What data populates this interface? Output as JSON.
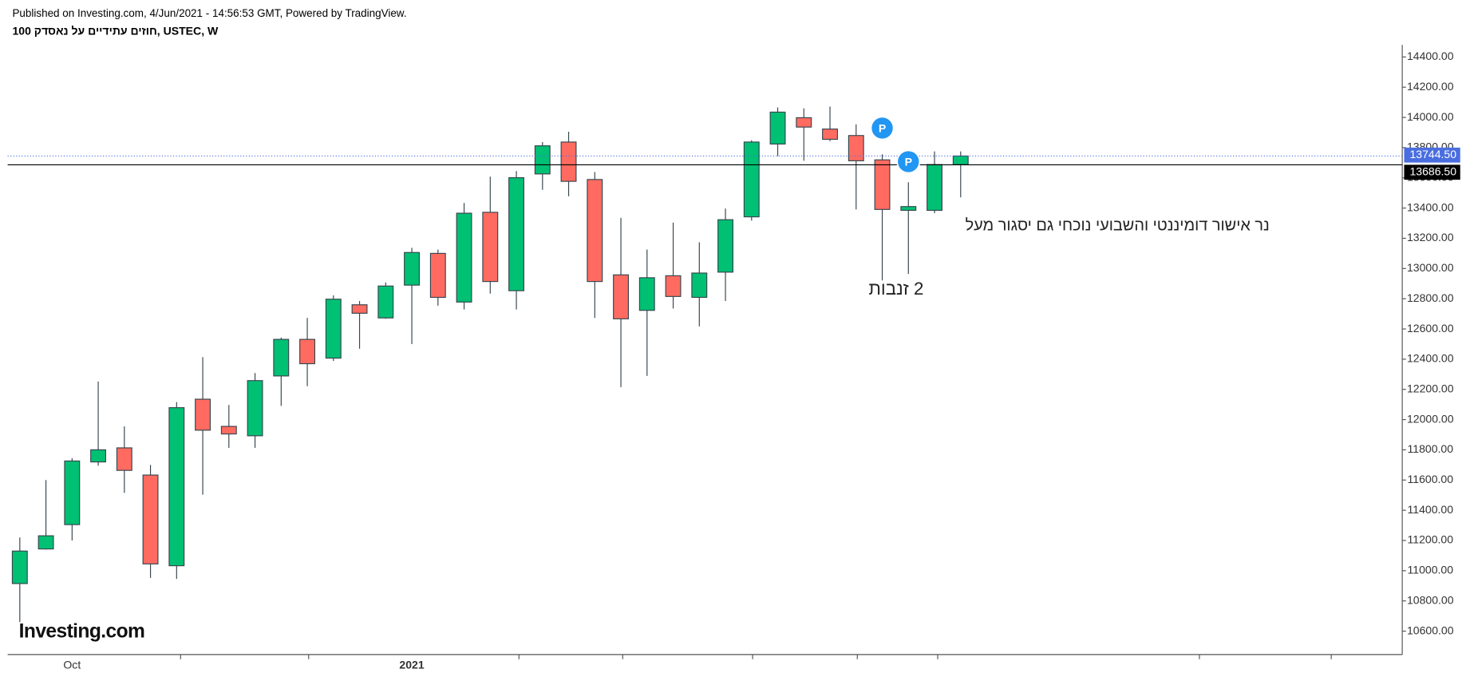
{
  "chart_data": {
    "type": "candlestick",
    "header": "Published on Investing.com, 4/Jun/2021 - 14:56:53 GMT, Powered by TradingView.",
    "title": "חוזים עתידיים על נאסדק 100, USTEC, W",
    "logo": "Investing.com",
    "categories": [
      null,
      null,
      "Oct",
      null,
      null,
      null,
      null,
      null,
      null,
      null,
      null,
      null,
      null,
      null,
      null,
      "2021",
      null,
      null,
      null,
      null,
      null,
      null,
      null,
      null,
      null,
      null,
      null,
      null,
      null,
      null,
      null,
      null,
      null,
      null,
      null,
      null,
      null
    ],
    "series": [
      {
        "open": [
          10915,
          11144,
          11305,
          11720,
          11813,
          11633,
          11033,
          12135,
          11955,
          11893,
          12289,
          12531,
          12407,
          12760,
          12673,
          12890,
          13100,
          12778,
          13372,
          12853,
          13626,
          13837,
          13589,
          12958,
          12723,
          12952,
          12809,
          12976,
          13342,
          13824,
          13998,
          13923,
          13880,
          13719,
          13385,
          13385,
          13688
        ],
        "high": [
          11220,
          11600,
          11745,
          12252,
          11955,
          11700,
          12116,
          12413,
          12097,
          12308,
          12543,
          12673,
          12822,
          12785,
          12908,
          13137,
          13125,
          13434,
          13608,
          13645,
          13837,
          13905,
          13639,
          13335,
          13125,
          13304,
          13174,
          13397,
          13849,
          14066,
          14060,
          14072,
          13954,
          13756,
          13571,
          13775,
          13775
        ],
        "low": [
          10660,
          11140,
          11200,
          11695,
          11515,
          10952,
          10946,
          11503,
          11813,
          11813,
          12091,
          12221,
          12388,
          12469,
          12667,
          12500,
          12754,
          12729,
          12834,
          12729,
          13521,
          13478,
          12673,
          12215,
          12289,
          12735,
          12617,
          12785,
          13317,
          13744,
          13713,
          13843,
          13391,
          12921,
          12964,
          13366,
          13471
        ],
        "close": [
          11130,
          11231,
          11726,
          11800,
          11664,
          11045,
          12079,
          11930,
          11905,
          12258,
          12531,
          12370,
          12797,
          12704,
          12884,
          13106,
          12809,
          13366,
          12914,
          13601,
          13812,
          13577,
          12914,
          12667,
          12939,
          12815,
          12970,
          13323,
          13837,
          14035,
          13936,
          13855,
          13713,
          13391,
          13410,
          13688,
          13744.5
        ]
      }
    ],
    "up_color": "#00c073",
    "down_color": "#ff6b61",
    "ylim": [
      10445,
      14480
    ],
    "yticks": [
      {
        "value": 10600,
        "label": "10600.00"
      },
      {
        "value": 10800,
        "label": "10800.00"
      },
      {
        "value": 11000,
        "label": "11000.00"
      },
      {
        "value": 11200,
        "label": "11200.00"
      },
      {
        "value": 11400,
        "label": "11400.00"
      },
      {
        "value": 11600,
        "label": "11600.00"
      },
      {
        "value": 11800,
        "label": "11800.00"
      },
      {
        "value": 12000,
        "label": "12000.00"
      },
      {
        "value": 12200,
        "label": "12200.00"
      },
      {
        "value": 12400,
        "label": "12400.00"
      },
      {
        "value": 12600,
        "label": "12600.00"
      },
      {
        "value": 12800,
        "label": "12800.00"
      },
      {
        "value": 13000,
        "label": "13000.00"
      },
      {
        "value": 13200,
        "label": "13200.00"
      },
      {
        "value": 13400,
        "label": "13400.00"
      },
      {
        "value": 13600,
        "label": "13600.00"
      },
      {
        "value": 13800,
        "label": "13800.00"
      },
      {
        "value": 14000,
        "label": "14000.00"
      },
      {
        "value": 14200,
        "label": "14200.00"
      },
      {
        "value": 14400,
        "label": "14400.00"
      }
    ],
    "price_lines": [
      {
        "value": 13744.5,
        "label": "13744.50",
        "color": "#4a6ee0"
      },
      {
        "value": 13686.5,
        "label": "13686.50",
        "color": "#000000"
      }
    ],
    "markers": [
      {
        "category_index": 33,
        "label": "P"
      },
      {
        "category_index": 34,
        "label": "P"
      }
    ],
    "annotations": [
      "נר אישור דומיננטי והשבועי נוכחי גם יסגור מעל",
      "2 זנבות"
    ]
  }
}
